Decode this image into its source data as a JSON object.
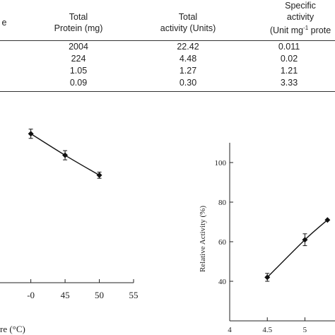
{
  "table": {
    "headers": [
      {
        "id": "col0",
        "line1": "",
        "line2": "e"
      },
      {
        "id": "protein",
        "line1": "Total",
        "line2": "Protein (mg)"
      },
      {
        "id": "activity",
        "line1": "Total",
        "line2": "activity (Units)"
      },
      {
        "id": "specific",
        "line0": "Specific",
        "line1": "activity",
        "line2": "(Unit mg",
        "sup": "-1",
        "line2b": " prote"
      }
    ],
    "rows": [
      [
        "2004",
        "22.42",
        "0.011"
      ],
      [
        "224",
        "4.48",
        "0.02"
      ],
      [
        "1.05",
        "1.27",
        "1.21"
      ],
      [
        "0.09",
        "0.30",
        "3.33"
      ]
    ]
  },
  "chart_data": [
    {
      "type": "line",
      "xlabel": "re (°C)",
      "ylabel": "",
      "x_ticks": [
        "-0",
        "45",
        "50",
        "55"
      ],
      "points": [
        {
          "x": 40,
          "y": 97,
          "err": 3
        },
        {
          "x": 45,
          "y": 83,
          "err": 3
        },
        {
          "x": 50,
          "y": 70,
          "err": 2
        }
      ],
      "xlim": [
        35.5,
        55
      ],
      "ylim": [
        0,
        110
      ]
    },
    {
      "type": "line",
      "xlabel": "",
      "ylabel": "Relative Activity (%)",
      "y_ticks": [
        40,
        60,
        80,
        100
      ],
      "x_ticks": [
        "4",
        "4.5",
        "5"
      ],
      "points": [
        {
          "x": 4.5,
          "y": 42,
          "err": 2
        },
        {
          "x": 5,
          "y": 61,
          "err": 3
        },
        {
          "x": 5.3,
          "y": 71,
          "err": 0
        }
      ],
      "xlim": [
        4,
        5.4
      ],
      "ylim": [
        20,
        110
      ]
    }
  ]
}
